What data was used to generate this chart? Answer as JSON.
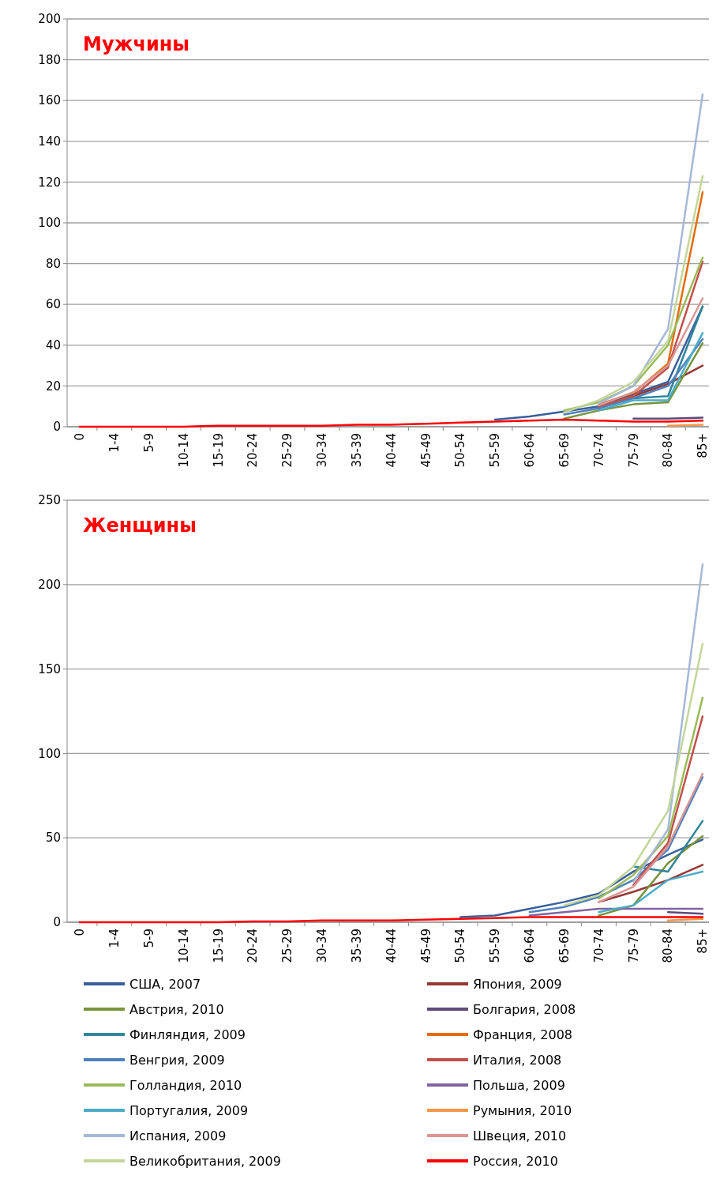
{
  "chart_data": [
    {
      "type": "line",
      "title": "Мужчины",
      "categories": [
        "0",
        "1-4",
        "5-9",
        "10-14",
        "15-19",
        "20-24",
        "25-29",
        "30-34",
        "35-39",
        "40-44",
        "45-49",
        "50-54",
        "55-59",
        "60-64",
        "65-69",
        "70-74",
        "75-79",
        "80-84",
        "85+"
      ],
      "ylim": [
        0,
        200
      ],
      "yticks": [
        0,
        20,
        40,
        60,
        80,
        100,
        120,
        140,
        160,
        180,
        200
      ],
      "grid": "y",
      "legend": false,
      "series": [
        {
          "color": "#3a5f9b",
          "values": [
            null,
            null,
            null,
            null,
            null,
            null,
            null,
            null,
            null,
            null,
            null,
            null,
            3.5,
            5,
            7.5,
            10,
            16,
            22,
            59
          ]
        },
        {
          "color": "#953735",
          "values": [
            null,
            null,
            null,
            null,
            null,
            null,
            null,
            null,
            null,
            null,
            null,
            null,
            null,
            null,
            null,
            9,
            15,
            21,
            30
          ]
        },
        {
          "color": "#77933c",
          "values": [
            null,
            null,
            null,
            null,
            null,
            null,
            null,
            null,
            null,
            null,
            null,
            null,
            null,
            null,
            4,
            8,
            11,
            12,
            41
          ]
        },
        {
          "color": "#5f497a",
          "values": [
            null,
            null,
            null,
            null,
            null,
            null,
            null,
            null,
            null,
            null,
            null,
            null,
            null,
            null,
            null,
            null,
            4,
            4,
            4.5
          ]
        },
        {
          "color": "#31859c",
          "values": [
            null,
            null,
            null,
            null,
            null,
            null,
            null,
            null,
            null,
            null,
            null,
            null,
            null,
            null,
            null,
            9.5,
            14,
            15,
            59
          ]
        },
        {
          "color": "#e46c0a",
          "values": [
            null,
            null,
            null,
            null,
            null,
            null,
            null,
            null,
            null,
            null,
            null,
            null,
            null,
            null,
            null,
            11,
            16.5,
            31,
            115
          ]
        },
        {
          "color": "#4f81bd",
          "values": [
            null,
            null,
            null,
            null,
            null,
            null,
            null,
            null,
            null,
            null,
            null,
            null,
            null,
            null,
            6,
            9,
            14,
            20,
            43
          ]
        },
        {
          "color": "#c0504d",
          "values": [
            null,
            null,
            null,
            null,
            null,
            null,
            null,
            null,
            null,
            null,
            null,
            null,
            null,
            null,
            null,
            10,
            15,
            29,
            81
          ]
        },
        {
          "color": "#9bbb59",
          "values": [
            null,
            null,
            null,
            null,
            null,
            null,
            null,
            null,
            null,
            null,
            null,
            null,
            null,
            null,
            8,
            12,
            20,
            40,
            83
          ]
        },
        {
          "color": "#8064a2",
          "values": [
            null,
            null,
            null,
            null,
            null,
            null,
            null,
            null,
            null,
            null,
            null,
            null,
            null,
            null,
            null,
            null,
            null,
            null,
            null
          ]
        },
        {
          "color": "#4bacc6",
          "values": [
            null,
            null,
            null,
            null,
            null,
            null,
            null,
            null,
            null,
            null,
            null,
            null,
            null,
            null,
            null,
            8,
            13,
            13,
            46
          ]
        },
        {
          "color": "#f79646",
          "values": [
            null,
            null,
            null,
            null,
            null,
            null,
            null,
            null,
            null,
            null,
            null,
            null,
            null,
            null,
            null,
            null,
            null,
            0.5,
            1
          ]
        },
        {
          "color": "#a5b8d8",
          "values": [
            null,
            null,
            null,
            null,
            null,
            null,
            null,
            null,
            null,
            null,
            null,
            null,
            null,
            null,
            null,
            11.5,
            20,
            48,
            163
          ]
        },
        {
          "color": "#d99694",
          "values": [
            null,
            null,
            null,
            null,
            null,
            null,
            null,
            null,
            null,
            null,
            null,
            null,
            null,
            null,
            null,
            10.5,
            17,
            30,
            63
          ]
        },
        {
          "color": "#c3d69b",
          "values": [
            null,
            null,
            null,
            null,
            null,
            null,
            null,
            null,
            null,
            null,
            null,
            null,
            null,
            null,
            7,
            13,
            22,
            42,
            123
          ]
        },
        {
          "color": "#ff0000",
          "values": [
            0,
            0,
            0,
            0,
            0.5,
            0.5,
            0.5,
            0.5,
            1,
            1,
            1.5,
            2,
            2.5,
            3,
            3.5,
            3,
            2.5,
            2.5,
            3
          ]
        }
      ]
    },
    {
      "type": "line",
      "title": "Женщины",
      "categories": [
        "0",
        "1-4",
        "5-9",
        "10-14",
        "15-19",
        "20-24",
        "25-29",
        "30-34",
        "35-39",
        "40-44",
        "45-49",
        "50-54",
        "55-59",
        "60-64",
        "65-69",
        "70-74",
        "75-79",
        "80-84",
        "85+"
      ],
      "ylim": [
        0,
        250
      ],
      "yticks": [
        0,
        50,
        100,
        150,
        200,
        250
      ],
      "grid": "y",
      "legend": "bottom",
      "series": [
        {
          "name": "США, 2007",
          "color": "#3a5f9b",
          "values": [
            null,
            null,
            null,
            null,
            null,
            null,
            null,
            null,
            null,
            null,
            null,
            3,
            4,
            8,
            12,
            17,
            30,
            40,
            49
          ]
        },
        {
          "name": "Япония, 2009",
          "color": "#953735",
          "values": [
            null,
            null,
            null,
            null,
            null,
            null,
            null,
            null,
            null,
            null,
            null,
            null,
            null,
            null,
            null,
            12,
            18,
            25,
            34
          ]
        },
        {
          "name": "Австрия, 2010",
          "color": "#77933c",
          "values": [
            null,
            null,
            null,
            null,
            null,
            null,
            null,
            null,
            null,
            null,
            null,
            null,
            null,
            null,
            null,
            4,
            10,
            35,
            51
          ]
        },
        {
          "name": "Болгария, 2008",
          "color": "#5f497a",
          "values": [
            null,
            null,
            null,
            null,
            null,
            null,
            null,
            null,
            null,
            null,
            null,
            null,
            null,
            null,
            null,
            null,
            null,
            6,
            5
          ]
        },
        {
          "name": "Финляндия, 2009",
          "color": "#31859c",
          "values": [
            null,
            null,
            null,
            null,
            null,
            null,
            null,
            null,
            null,
            null,
            null,
            null,
            null,
            null,
            null,
            null,
            33,
            30,
            60
          ]
        },
        {
          "name": "Франция, 2008",
          "color": "#e46c0a",
          "values": [
            null,
            null,
            null,
            null,
            null,
            null,
            null,
            null,
            null,
            null,
            null,
            null,
            null,
            null,
            null,
            null,
            null,
            null,
            null
          ]
        },
        {
          "name": "Венгрия, 2009",
          "color": "#4f81bd",
          "values": [
            null,
            null,
            null,
            null,
            null,
            null,
            null,
            null,
            null,
            null,
            null,
            null,
            null,
            6,
            9,
            15,
            25,
            43,
            86
          ]
        },
        {
          "name": "Италия, 2008",
          "color": "#c0504d",
          "values": [
            null,
            null,
            null,
            null,
            null,
            null,
            null,
            null,
            null,
            null,
            null,
            null,
            null,
            null,
            null,
            null,
            22,
            47,
            122
          ]
        },
        {
          "name": "Голландия, 2010",
          "color": "#9bbb59",
          "values": [
            null,
            null,
            null,
            null,
            null,
            null,
            null,
            null,
            null,
            null,
            null,
            null,
            null,
            null,
            null,
            14,
            28,
            51,
            133
          ]
        },
        {
          "name": "Польша, 2009",
          "color": "#8064a2",
          "values": [
            null,
            null,
            null,
            null,
            null,
            null,
            null,
            null,
            null,
            null,
            null,
            null,
            null,
            4,
            6,
            8,
            8,
            8,
            8
          ]
        },
        {
          "name": "Португалия, 2009",
          "color": "#4bacc6",
          "values": [
            null,
            null,
            null,
            null,
            null,
            null,
            null,
            null,
            null,
            null,
            null,
            null,
            null,
            null,
            null,
            6,
            10,
            25,
            30
          ]
        },
        {
          "name": "Румыния, 2010",
          "color": "#f79646",
          "values": [
            null,
            null,
            null,
            null,
            null,
            null,
            null,
            null,
            null,
            null,
            null,
            null,
            null,
            null,
            null,
            null,
            null,
            1,
            2
          ]
        },
        {
          "name": "Испания, 2009",
          "color": "#a5b8d8",
          "values": [
            null,
            null,
            null,
            null,
            null,
            null,
            null,
            null,
            null,
            null,
            null,
            null,
            null,
            null,
            null,
            null,
            24,
            55,
            212
          ]
        },
        {
          "name": "Швеция, 2010",
          "color": "#d99694",
          "values": [
            null,
            null,
            null,
            null,
            null,
            null,
            null,
            null,
            null,
            null,
            null,
            null,
            null,
            null,
            null,
            12,
            21,
            45,
            88
          ]
        },
        {
          "name": "Великобритания, 2009",
          "color": "#c3d69b",
          "values": [
            null,
            null,
            null,
            null,
            null,
            null,
            null,
            null,
            null,
            null,
            null,
            null,
            null,
            null,
            10,
            16,
            33,
            66,
            165
          ]
        },
        {
          "name": "Россия, 2010",
          "color": "#ff0000",
          "values": [
            0,
            0,
            0,
            0,
            0,
            0.5,
            0.5,
            1,
            1,
            1,
            1.5,
            2,
            2.5,
            3,
            3,
            3,
            3,
            3,
            3
          ]
        }
      ]
    }
  ]
}
